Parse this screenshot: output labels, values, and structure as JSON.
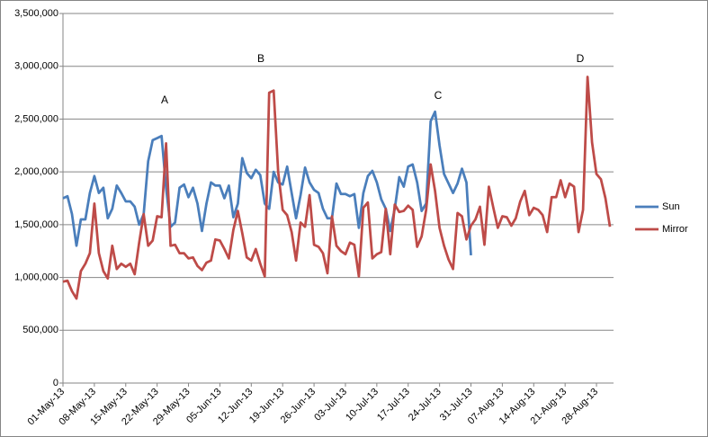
{
  "chart_data": {
    "type": "line",
    "categories": [
      "01-May-13",
      null,
      null,
      null,
      null,
      null,
      null,
      "08-May-13",
      null,
      null,
      null,
      null,
      null,
      null,
      "15-May-13",
      null,
      null,
      null,
      null,
      null,
      null,
      "22-May-13",
      null,
      null,
      null,
      null,
      null,
      null,
      "29-May-13",
      null,
      null,
      null,
      null,
      null,
      null,
      "05-Jun-13",
      null,
      null,
      null,
      null,
      null,
      null,
      "12-Jun-13",
      null,
      null,
      null,
      null,
      null,
      null,
      "19-Jun-13",
      null,
      null,
      null,
      null,
      null,
      null,
      "26-Jun-13",
      null,
      null,
      null,
      null,
      null,
      null,
      "03-Jul-13",
      null,
      null,
      null,
      null,
      null,
      null,
      "10-Jul-13",
      null,
      null,
      null,
      null,
      null,
      null,
      "17-Jul-13",
      null,
      null,
      null,
      null,
      null,
      null,
      "24-Jul-13",
      null,
      null,
      null,
      null,
      null,
      null,
      "31-Jul-13",
      null,
      null,
      null,
      null,
      null,
      null,
      "07-Aug-13",
      null,
      null,
      null,
      null,
      null,
      null,
      "14-Aug-13",
      null,
      null,
      null,
      null,
      null,
      null,
      "21-Aug-13",
      null,
      null,
      null,
      null,
      null,
      null,
      "28-Aug-13",
      null,
      null,
      null
    ],
    "series": [
      {
        "name": "Sun",
        "color": "#4a7ebb",
        "values": [
          1750000,
          1770000,
          1600000,
          1300000,
          1550000,
          1550000,
          1800000,
          1960000,
          1800000,
          1850000,
          1560000,
          1650000,
          1870000,
          1800000,
          1720000,
          1720000,
          1670000,
          1500000,
          1600000,
          2100000,
          2300000,
          2320000,
          2340000,
          1850000,
          1480000,
          1520000,
          1850000,
          1880000,
          1760000,
          1850000,
          1700000,
          1440000,
          1700000,
          1900000,
          1870000,
          1870000,
          1750000,
          1870000,
          1570000,
          1700000,
          2130000,
          1990000,
          1940000,
          2020000,
          1970000,
          1700000,
          1650000,
          2000000,
          1900000,
          1880000,
          2050000,
          1800000,
          1560000,
          1780000,
          2040000,
          1900000,
          1830000,
          1800000,
          1650000,
          1560000,
          1560000,
          1890000,
          1790000,
          1790000,
          1770000,
          1790000,
          1470000,
          1800000,
          1960000,
          2010000,
          1900000,
          1740000,
          1650000,
          1440000,
          1650000,
          1950000,
          1860000,
          2050000,
          2070000,
          1900000,
          1630000,
          1700000,
          2480000,
          2570000,
          2250000,
          1980000,
          1890000,
          1800000,
          1890000,
          2030000,
          1900000,
          1210000,
          null,
          null,
          null,
          null,
          null,
          null,
          null,
          null,
          null,
          null,
          null,
          null,
          null,
          null,
          null,
          null,
          null,
          null,
          null,
          null,
          null,
          null,
          null,
          null,
          null,
          null,
          null,
          null,
          null,
          null,
          null
        ]
      },
      {
        "name": "Mirror",
        "color": "#be4b48",
        "values": [
          960000,
          970000,
          870000,
          800000,
          1060000,
          1130000,
          1230000,
          1700000,
          1230000,
          1060000,
          990000,
          1300000,
          1080000,
          1130000,
          1100000,
          1130000,
          1030000,
          1330000,
          1600000,
          1300000,
          1350000,
          1580000,
          1570000,
          2270000,
          1300000,
          1310000,
          1230000,
          1230000,
          1180000,
          1190000,
          1110000,
          1070000,
          1140000,
          1160000,
          1360000,
          1350000,
          1270000,
          1180000,
          1450000,
          1630000,
          1420000,
          1190000,
          1160000,
          1270000,
          1130000,
          1010000,
          2750000,
          2770000,
          2000000,
          1640000,
          1590000,
          1430000,
          1160000,
          1520000,
          1480000,
          1780000,
          1310000,
          1290000,
          1230000,
          1040000,
          1580000,
          1300000,
          1250000,
          1220000,
          1330000,
          1310000,
          1010000,
          1660000,
          1710000,
          1180000,
          1220000,
          1240000,
          1650000,
          1220000,
          1690000,
          1620000,
          1630000,
          1680000,
          1640000,
          1290000,
          1390000,
          1640000,
          2070000,
          1820000,
          1470000,
          1300000,
          1170000,
          1080000,
          1610000,
          1580000,
          1360000,
          1490000,
          1550000,
          1670000,
          1310000,
          1860000,
          1660000,
          1470000,
          1580000,
          1570000,
          1490000,
          1560000,
          1720000,
          1820000,
          1590000,
          1660000,
          1640000,
          1590000,
          1430000,
          1760000,
          1760000,
          1920000,
          1760000,
          1890000,
          1860000,
          1430000,
          1640000,
          2900000,
          2280000,
          1980000,
          1930000,
          1750000,
          1480000
        ]
      }
    ],
    "ylim": [
      0,
      3500000
    ],
    "yticks": [
      0,
      {
        "value": 500000,
        "label": "500,000"
      },
      {
        "value": 1000000,
        "label": "1,000,000"
      },
      {
        "value": 1500000,
        "label": "1,500,000"
      },
      {
        "value": 2000000,
        "label": "2,000,000"
      },
      {
        "value": 2500000,
        "label": "2,500,000"
      },
      {
        "value": 3000000,
        "label": "3,000,000"
      },
      {
        "value": 3500000,
        "label": "3,500,000"
      }
    ],
    "grid": true,
    "legend": "right",
    "annotations": [
      "A",
      "B",
      "C",
      "D"
    ]
  }
}
